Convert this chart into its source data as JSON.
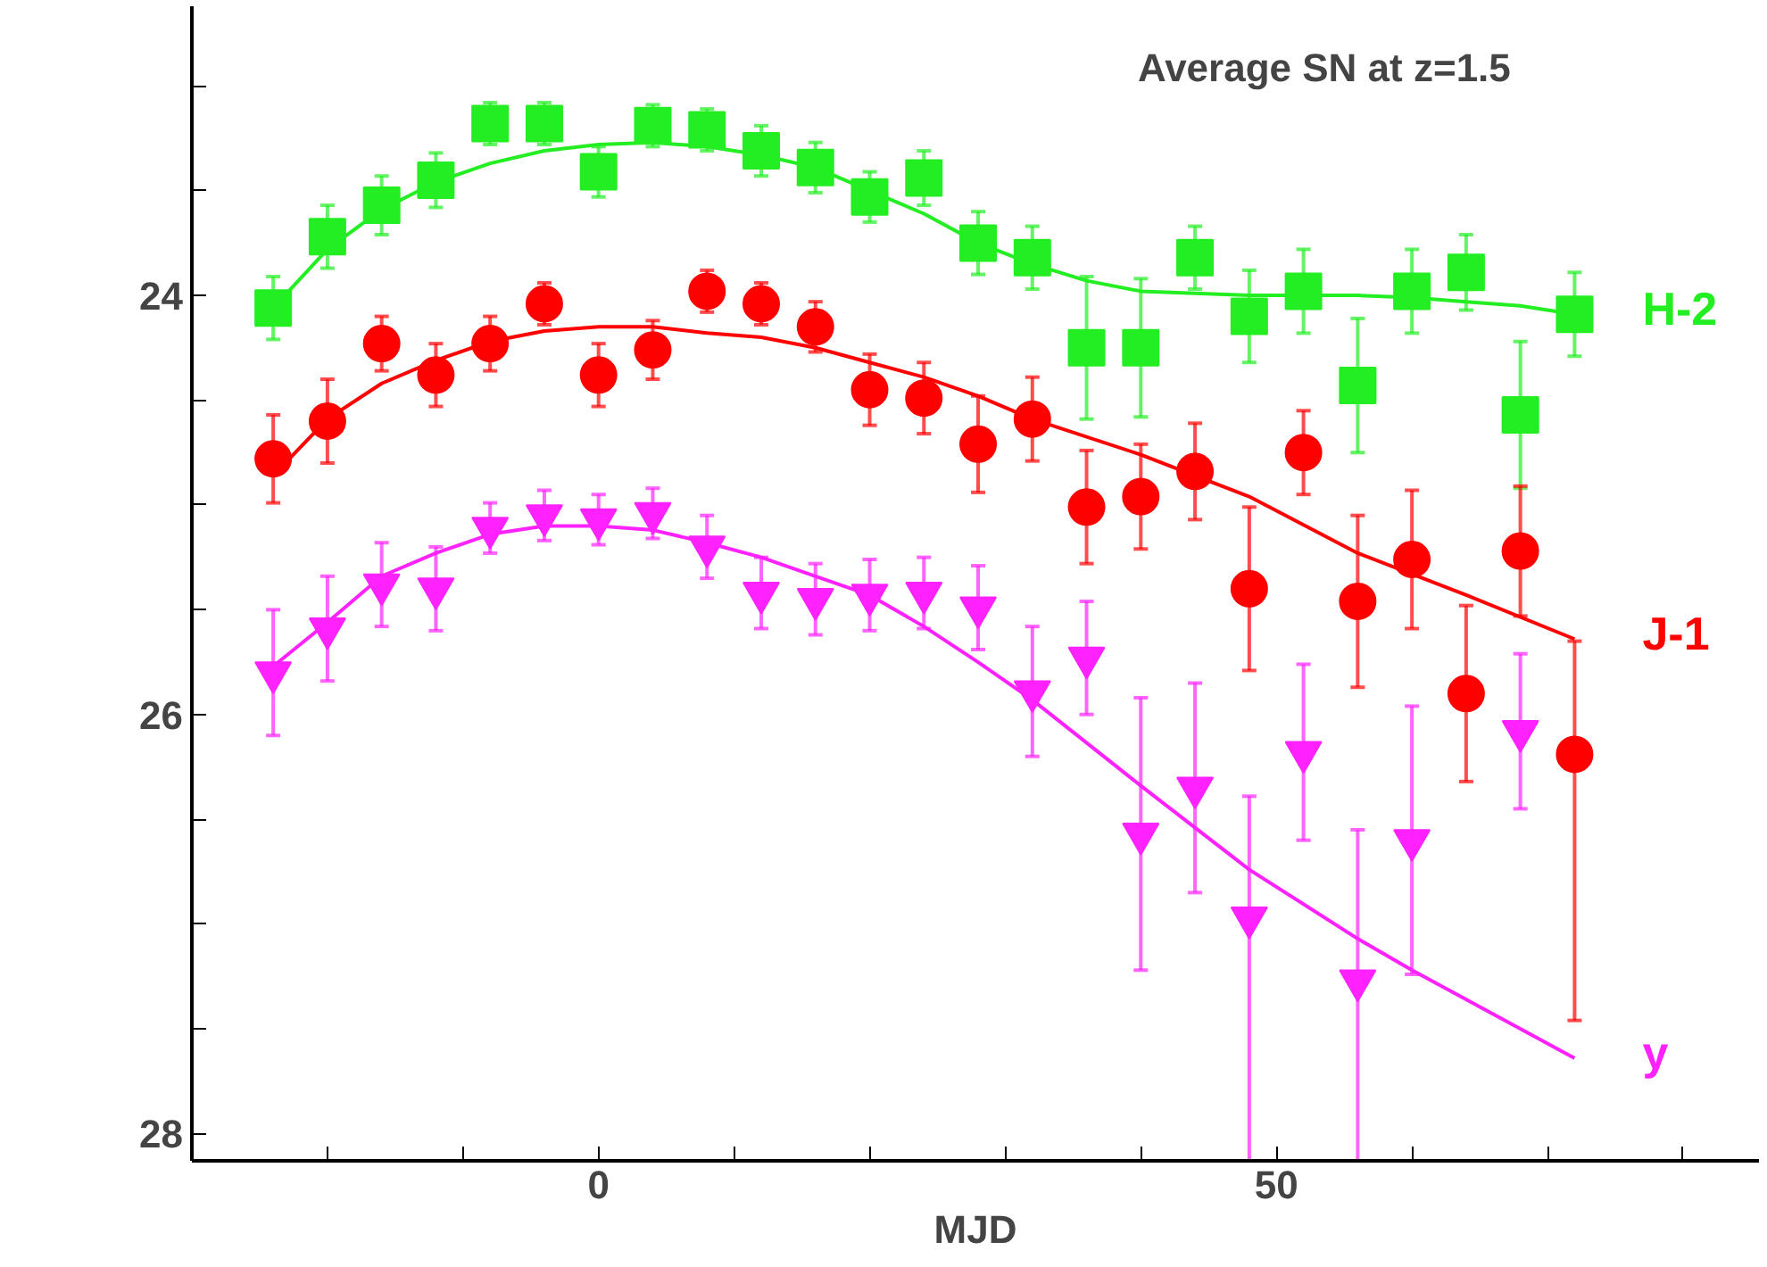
{
  "chart_data": {
    "type": "scatter",
    "title": "Average SN at z=1.5",
    "xlabel": "MJD",
    "x": [
      -24,
      -20,
      -16,
      -12,
      -8,
      -4,
      0,
      4,
      8,
      12,
      16,
      20,
      24,
      28,
      32,
      36,
      40,
      44,
      48,
      52,
      56,
      60,
      64,
      68,
      72
    ],
    "series": [
      {
        "color": "#22ee22",
        "marker": "square",
        "values": [
          24.06,
          23.72,
          23.57,
          23.45,
          23.18,
          23.18,
          23.41,
          23.19,
          23.21,
          23.31,
          23.39,
          23.53,
          23.44,
          23.75,
          23.82,
          24.25,
          24.25,
          23.82,
          24.1,
          23.98,
          24.43,
          23.98,
          23.89,
          24.57,
          24.09
        ],
        "errors": [
          0.15,
          0.15,
          0.14,
          0.13,
          0.1,
          0.1,
          0.12,
          0.1,
          0.1,
          0.12,
          0.12,
          0.12,
          0.13,
          0.15,
          0.15,
          0.34,
          0.33,
          0.15,
          0.22,
          0.2,
          0.32,
          0.2,
          0.18,
          0.35,
          0.2
        ]
      },
      {
        "color": "#ff0000",
        "marker": "circle",
        "values": [
          24.78,
          24.6,
          24.23,
          24.38,
          24.23,
          24.04,
          24.38,
          24.26,
          23.98,
          24.04,
          24.15,
          24.45,
          24.49,
          24.71,
          24.59,
          25.01,
          24.96,
          24.84,
          25.4,
          24.75,
          25.46,
          25.26,
          25.9,
          25.22,
          26.19
        ],
        "errors": [
          0.21,
          0.2,
          0.13,
          0.15,
          0.13,
          0.1,
          0.15,
          0.14,
          0.1,
          0.1,
          0.12,
          0.17,
          0.17,
          0.23,
          0.2,
          0.27,
          0.25,
          0.23,
          0.39,
          0.2,
          0.41,
          0.33,
          0.42,
          0.31,
          [
            25.65,
            27.46
          ]
        ]
      },
      {
        "color": "#ff22ff",
        "marker": "triangle",
        "values": [
          25.8,
          25.59,
          25.38,
          25.4,
          25.11,
          25.05,
          25.07,
          25.04,
          25.2,
          25.42,
          25.45,
          25.43,
          25.42,
          25.49,
          25.89,
          25.73,
          26.57,
          26.35,
          26.97,
          26.18,
          27.27,
          26.6,
          null,
          26.08,
          null
        ],
        "errors": [
          0.3,
          0.25,
          0.2,
          0.2,
          0.12,
          0.12,
          0.12,
          0.12,
          0.15,
          0.17,
          0.17,
          0.17,
          0.17,
          0.2,
          0.31,
          0.27,
          0.65,
          0.5,
          [
            26.39,
            28.13
          ],
          0.42,
          [
            26.55,
            28.13
          ],
          0.64,
          null,
          0.37,
          null
        ]
      },
      {
        "type": "line",
        "name": "H-2",
        "color": "#22ee22",
        "x": [
          -24,
          -20,
          -16,
          -12,
          -8,
          -4,
          0,
          4,
          8,
          12,
          16,
          20,
          24,
          28,
          32,
          36,
          40,
          44,
          48,
          52,
          56,
          60,
          64,
          68,
          72
        ],
        "values": [
          24.06,
          23.78,
          23.59,
          23.46,
          23.37,
          23.31,
          23.28,
          23.27,
          23.29,
          23.33,
          23.39,
          23.5,
          23.61,
          23.75,
          23.85,
          23.93,
          23.98,
          23.99,
          24.0,
          24.0,
          24.0,
          24.01,
          24.03,
          24.05,
          24.09
        ]
      },
      {
        "type": "line",
        "name": "J-1",
        "color": "#ff0000",
        "x": [
          -24,
          -20,
          -16,
          -12,
          -8,
          -4,
          0,
          4,
          8,
          12,
          16,
          20,
          24,
          28,
          32,
          40,
          48,
          56,
          64,
          72
        ],
        "values": [
          24.86,
          24.59,
          24.42,
          24.31,
          24.22,
          24.17,
          24.15,
          24.15,
          24.18,
          24.2,
          24.25,
          24.32,
          24.39,
          24.48,
          24.59,
          24.76,
          24.96,
          25.23,
          25.43,
          25.64
        ]
      },
      {
        "type": "line",
        "name": "y",
        "color": "#ff22ff",
        "x": [
          -24,
          -20,
          -16,
          -12,
          -8,
          -4,
          0,
          4,
          8,
          12,
          16,
          20,
          24,
          28,
          32,
          40,
          48,
          56,
          60,
          72
        ],
        "values": [
          25.77,
          25.56,
          25.34,
          25.23,
          25.14,
          25.1,
          25.1,
          25.12,
          25.18,
          25.25,
          25.34,
          25.43,
          25.58,
          25.75,
          25.93,
          26.34,
          26.74,
          27.07,
          27.22,
          27.64
        ]
      }
    ],
    "xlim": [
      -30,
      85.6
    ],
    "ylim": [
      28.13,
      22.62
    ],
    "xticks": [
      {
        "value": -20,
        "label": null
      },
      {
        "value": -10,
        "label": null
      },
      0,
      {
        "value": 10,
        "label": null
      },
      {
        "value": 20,
        "label": null
      },
      {
        "value": 30,
        "label": null
      },
      {
        "value": 40,
        "label": null
      },
      50,
      {
        "value": 60,
        "label": null
      },
      {
        "value": 70,
        "label": null
      },
      {
        "value": 80,
        "label": null
      }
    ],
    "yticks": [
      {
        "value": 23,
        "label": null
      },
      {
        "value": 23.5,
        "label": null
      },
      24,
      {
        "value": 24.5,
        "label": null
      },
      {
        "value": 25,
        "label": null
      },
      {
        "value": 25.5,
        "label": null
      },
      26,
      {
        "value": 26.5,
        "label": null
      },
      {
        "value": 27,
        "label": null
      },
      {
        "value": 27.5,
        "label": null
      },
      28
    ],
    "grid": false
  }
}
